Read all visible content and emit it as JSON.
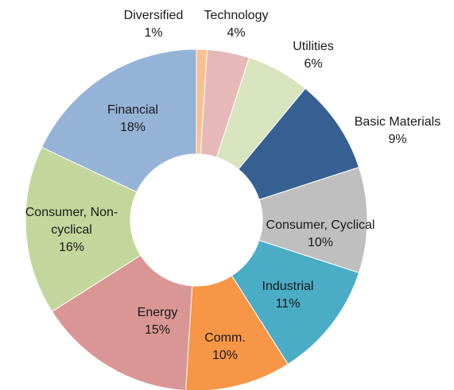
{
  "chart_data": {
    "type": "donut",
    "categories": [
      "Diversified",
      "Technology",
      "Utilities",
      "Basic Materials",
      "Consumer, Cyclical",
      "Industrial",
      "Comm.",
      "Energy",
      "Consumer, Non-cyclical",
      "Financial"
    ],
    "values": [
      1,
      4,
      6,
      9,
      10,
      11,
      10,
      15,
      16,
      18
    ],
    "value_labels": [
      "1%",
      "4%",
      "6%",
      "9%",
      "10%",
      "11%",
      "10%",
      "15%",
      "16%",
      "18%"
    ],
    "colors": [
      "#fac090",
      "#e6b9b8",
      "#d7e4bd",
      "#376092",
      "#bfbfbf",
      "#4bacc6",
      "#f79646",
      "#d99694",
      "#c3d69b",
      "#95b3d7"
    ]
  }
}
